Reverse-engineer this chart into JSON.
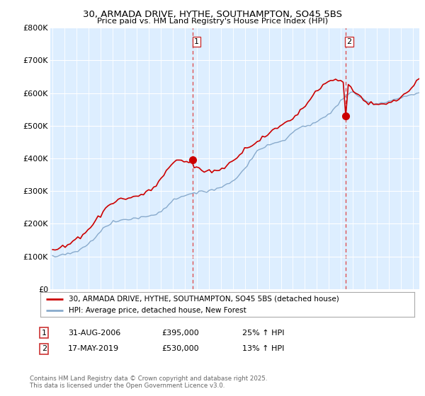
{
  "title": "30, ARMADA DRIVE, HYTHE, SOUTHAMPTON, SO45 5BS",
  "subtitle": "Price paid vs. HM Land Registry's House Price Index (HPI)",
  "legend_line1": "30, ARMADA DRIVE, HYTHE, SOUTHAMPTON, SO45 5BS (detached house)",
  "legend_line2": "HPI: Average price, detached house, New Forest",
  "footer": "Contains HM Land Registry data © Crown copyright and database right 2025.\nThis data is licensed under the Open Government Licence v3.0.",
  "sale1_label": "1",
  "sale1_date": "31-AUG-2006",
  "sale1_price": "£395,000",
  "sale1_hpi": "25% ↑ HPI",
  "sale2_label": "2",
  "sale2_date": "17-MAY-2019",
  "sale2_price": "£530,000",
  "sale2_hpi": "13% ↑ HPI",
  "sale1_year": 2006.67,
  "sale1_value": 395000,
  "sale2_year": 2019.38,
  "sale2_value": 530000,
  "red_color": "#cc0000",
  "blue_color": "#88aacc",
  "chart_bg_color": "#ddeeff",
  "grid_color": "#ffffff",
  "dashed_line_color": "#dd4444",
  "background_color": "#ffffff",
  "ylim": [
    0,
    800000
  ],
  "xlim_start": 1994.8,
  "xlim_end": 2025.5,
  "hpi_data": [
    100000,
    100500,
    101000,
    102000,
    103500,
    105000,
    107000,
    109500,
    112000,
    115000,
    118000,
    122000,
    126000,
    131000,
    137000,
    144000,
    152000,
    161000,
    170000,
    178000,
    185000,
    191000,
    196000,
    200000,
    204000,
    207000,
    209000,
    211000,
    212000,
    213000,
    214000,
    215500,
    217000,
    218000,
    219000,
    220000,
    221000,
    222500,
    224000,
    226000,
    228000,
    231000,
    235000,
    240000,
    246000,
    253000,
    260000,
    267000,
    273000,
    278000,
    282000,
    285000,
    287000,
    289000,
    290000,
    291000,
    292000,
    293500,
    295000,
    297000,
    299000,
    301000,
    303000,
    305000,
    307000,
    309000,
    311000,
    314000,
    317000,
    321000,
    325000,
    330000,
    336000,
    343000,
    351000,
    360000,
    370000,
    381000,
    392000,
    403000,
    413000,
    421000,
    428000,
    433000,
    437000,
    440000,
    442000,
    444000,
    446000,
    449000,
    452000,
    456000,
    461000,
    467000,
    473000,
    479000,
    485000,
    490000,
    494000,
    497000,
    499000,
    501000,
    503000,
    506000,
    509000,
    513000,
    517000,
    522000,
    527000,
    533000,
    540000,
    548000,
    557000,
    566000,
    575000,
    583000,
    590000,
    596000,
    600000,
    600000,
    597000,
    592000,
    586000,
    580000,
    575000,
    572000,
    570000,
    569000,
    568000,
    568000,
    569000,
    570000,
    572000,
    575000,
    578000,
    580000,
    582000,
    584000,
    586000,
    588000,
    590000,
    592000,
    594000,
    596000,
    598000,
    600000
  ],
  "red_data": [
    120000,
    121000,
    123000,
    125000,
    128000,
    131000,
    135000,
    140000,
    145000,
    151000,
    157000,
    163000,
    169000,
    175000,
    182000,
    190000,
    199000,
    208000,
    218000,
    228000,
    238000,
    247000,
    255000,
    261000,
    266000,
    270000,
    273000,
    275000,
    276000,
    277000,
    278000,
    280000,
    282000,
    284000,
    286000,
    289000,
    292000,
    296000,
    300000,
    305000,
    311000,
    318000,
    327000,
    337000,
    348000,
    360000,
    372000,
    382000,
    390000,
    395000,
    396000,
    394000,
    391000,
    388000,
    384000,
    380000,
    376000,
    372000,
    368000,
    364000,
    362000,
    361000,
    361000,
    362000,
    363000,
    364000,
    366000,
    369000,
    373000,
    378000,
    384000,
    391000,
    399000,
    407000,
    415000,
    422000,
    428000,
    433000,
    438000,
    443000,
    448000,
    453000,
    458000,
    463000,
    468000,
    473000,
    478000,
    483000,
    488000,
    493000,
    498000,
    503000,
    508000,
    513000,
    518000,
    524000,
    530000,
    537000,
    545000,
    553000,
    562000,
    572000,
    582000,
    593000,
    603000,
    612000,
    619000,
    625000,
    630000,
    634000,
    637000,
    639000,
    640000,
    640000,
    638000,
    635000,
    630000,
    624000,
    617000,
    610000,
    602000,
    594000,
    586000,
    579000,
    573000,
    568000,
    565000,
    563000,
    562000,
    562000,
    563000,
    564000,
    566000,
    568000,
    571000,
    574000,
    578000,
    582000,
    587000,
    593000,
    600000,
    608000,
    616000,
    625000,
    633000,
    641000
  ]
}
